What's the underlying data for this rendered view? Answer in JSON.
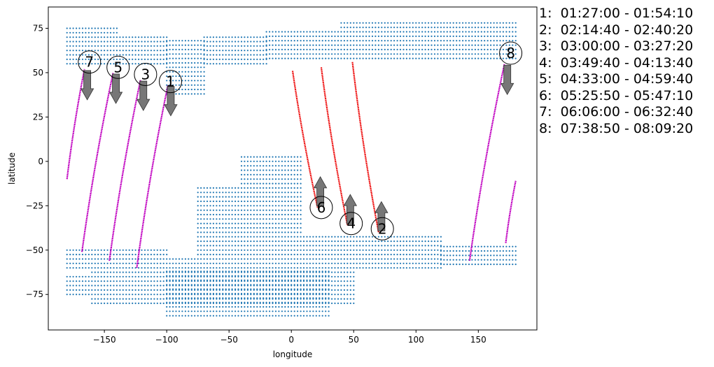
{
  "chart_data": {
    "type": "scatter",
    "title": "",
    "xlabel": "longitude",
    "ylabel": "latitude",
    "xlim": [
      -195,
      197
    ],
    "ylim": [
      -95,
      87
    ],
    "xticks": [
      -150,
      -100,
      -50,
      0,
      50,
      100,
      150
    ],
    "yticks": [
      -75,
      -50,
      -25,
      0,
      25,
      50,
      75
    ],
    "colors": {
      "land_grid": "#1f77b4",
      "ascending_track": "#c000c0",
      "descending_track": "#ee1111",
      "arrow": "#707070"
    },
    "land_grid_regions": [
      {
        "lon": [
          -180,
          -170
        ],
        "lat": [
          55,
          77
        ]
      },
      {
        "lon": [
          -170,
          -140
        ],
        "lat": [
          55,
          75
        ]
      },
      {
        "lon": [
          -140,
          -100
        ],
        "lat": [
          55,
          72
        ]
      },
      {
        "lon": [
          -100,
          -70
        ],
        "lat": [
          38,
          70
        ]
      },
      {
        "lon": [
          -70,
          -20
        ],
        "lat": [
          55,
          70
        ]
      },
      {
        "lon": [
          -20,
          40
        ],
        "lat": [
          58,
          75
        ]
      },
      {
        "lon": [
          40,
          180
        ],
        "lat": [
          58,
          79
        ]
      },
      {
        "lon": [
          -75,
          -10
        ],
        "lat": [
          -60,
          -13
        ]
      },
      {
        "lon": [
          -40,
          8
        ],
        "lat": [
          -40,
          3
        ]
      },
      {
        "lon": [
          -10,
          120
        ],
        "lat": [
          -60,
          -41
        ]
      },
      {
        "lon": [
          -180,
          -100
        ],
        "lat": [
          -60,
          -48
        ]
      },
      {
        "lon": [
          -160,
          50
        ],
        "lat": [
          -80,
          -55
        ]
      },
      {
        "lon": [
          -100,
          30
        ],
        "lat": [
          -87,
          -60
        ]
      },
      {
        "lon": [
          120,
          180
        ],
        "lat": [
          -58,
          -48
        ]
      },
      {
        "lon": [
          -180,
          -100
        ],
        "lat": [
          -75,
          -64
        ]
      }
    ],
    "tracks": [
      {
        "id": "1",
        "time": "01:27:00 - 01:54:10",
        "direction": "ascending",
        "lon_start": -124,
        "lat_start": -60,
        "lon_end": -99,
        "lat_end": 43,
        "label_lon": -97,
        "label_lat": 45
      },
      {
        "id": "2",
        "time": "02:14:40 - 02:40:20",
        "direction": "descending",
        "lon_start": 49,
        "lat_start": 56,
        "lon_end": 70,
        "lat_end": -40,
        "label_lon": 73,
        "label_lat": -38
      },
      {
        "id": "3",
        "time": "03:00:00 - 03:27:20",
        "direction": "ascending",
        "lon_start": -146,
        "lat_start": -56,
        "lon_end": -121,
        "lat_end": 46,
        "label_lon": -117,
        "label_lat": 49
      },
      {
        "id": "4",
        "time": "03:49:40 - 04:13:40",
        "direction": "descending",
        "lon_start": 24,
        "lat_start": 53,
        "lon_end": 45,
        "lat_end": -36,
        "label_lon": 48,
        "label_lat": -35
      },
      {
        "id": "5",
        "time": "04:33:00 - 04:59:40",
        "direction": "ascending",
        "lon_start": -168,
        "lat_start": -51,
        "lon_end": -143,
        "lat_end": 50,
        "label_lon": -139,
        "label_lat": 53
      },
      {
        "id": "6",
        "time": "05:25:50 - 05:47:10",
        "direction": "descending",
        "lon_start": 1,
        "lat_start": 51,
        "lon_end": 21,
        "lat_end": -26,
        "label_lon": 24,
        "label_lat": -26
      },
      {
        "id": "7",
        "time": "06:06:00 - 06:32:40",
        "direction": "ascending",
        "lon_start": -180,
        "lat_start": -10,
        "lon_end": -166,
        "lat_end": 52,
        "label_lon": -162,
        "label_lat": 56
      },
      {
        "id": "8",
        "time": "07:38:50 - 08:09:20",
        "direction": "ascending",
        "lon_start": 143,
        "lat_start": -56,
        "lon_end": 171,
        "lat_end": 55,
        "label_lon": 176,
        "label_lat": 61,
        "extra_segment": {
          "lon_start": 172,
          "lat_start": -46,
          "lon_end": 180,
          "lat_end": -11
        }
      }
    ],
    "legend_placement": "right, outside plot",
    "grid": false
  }
}
